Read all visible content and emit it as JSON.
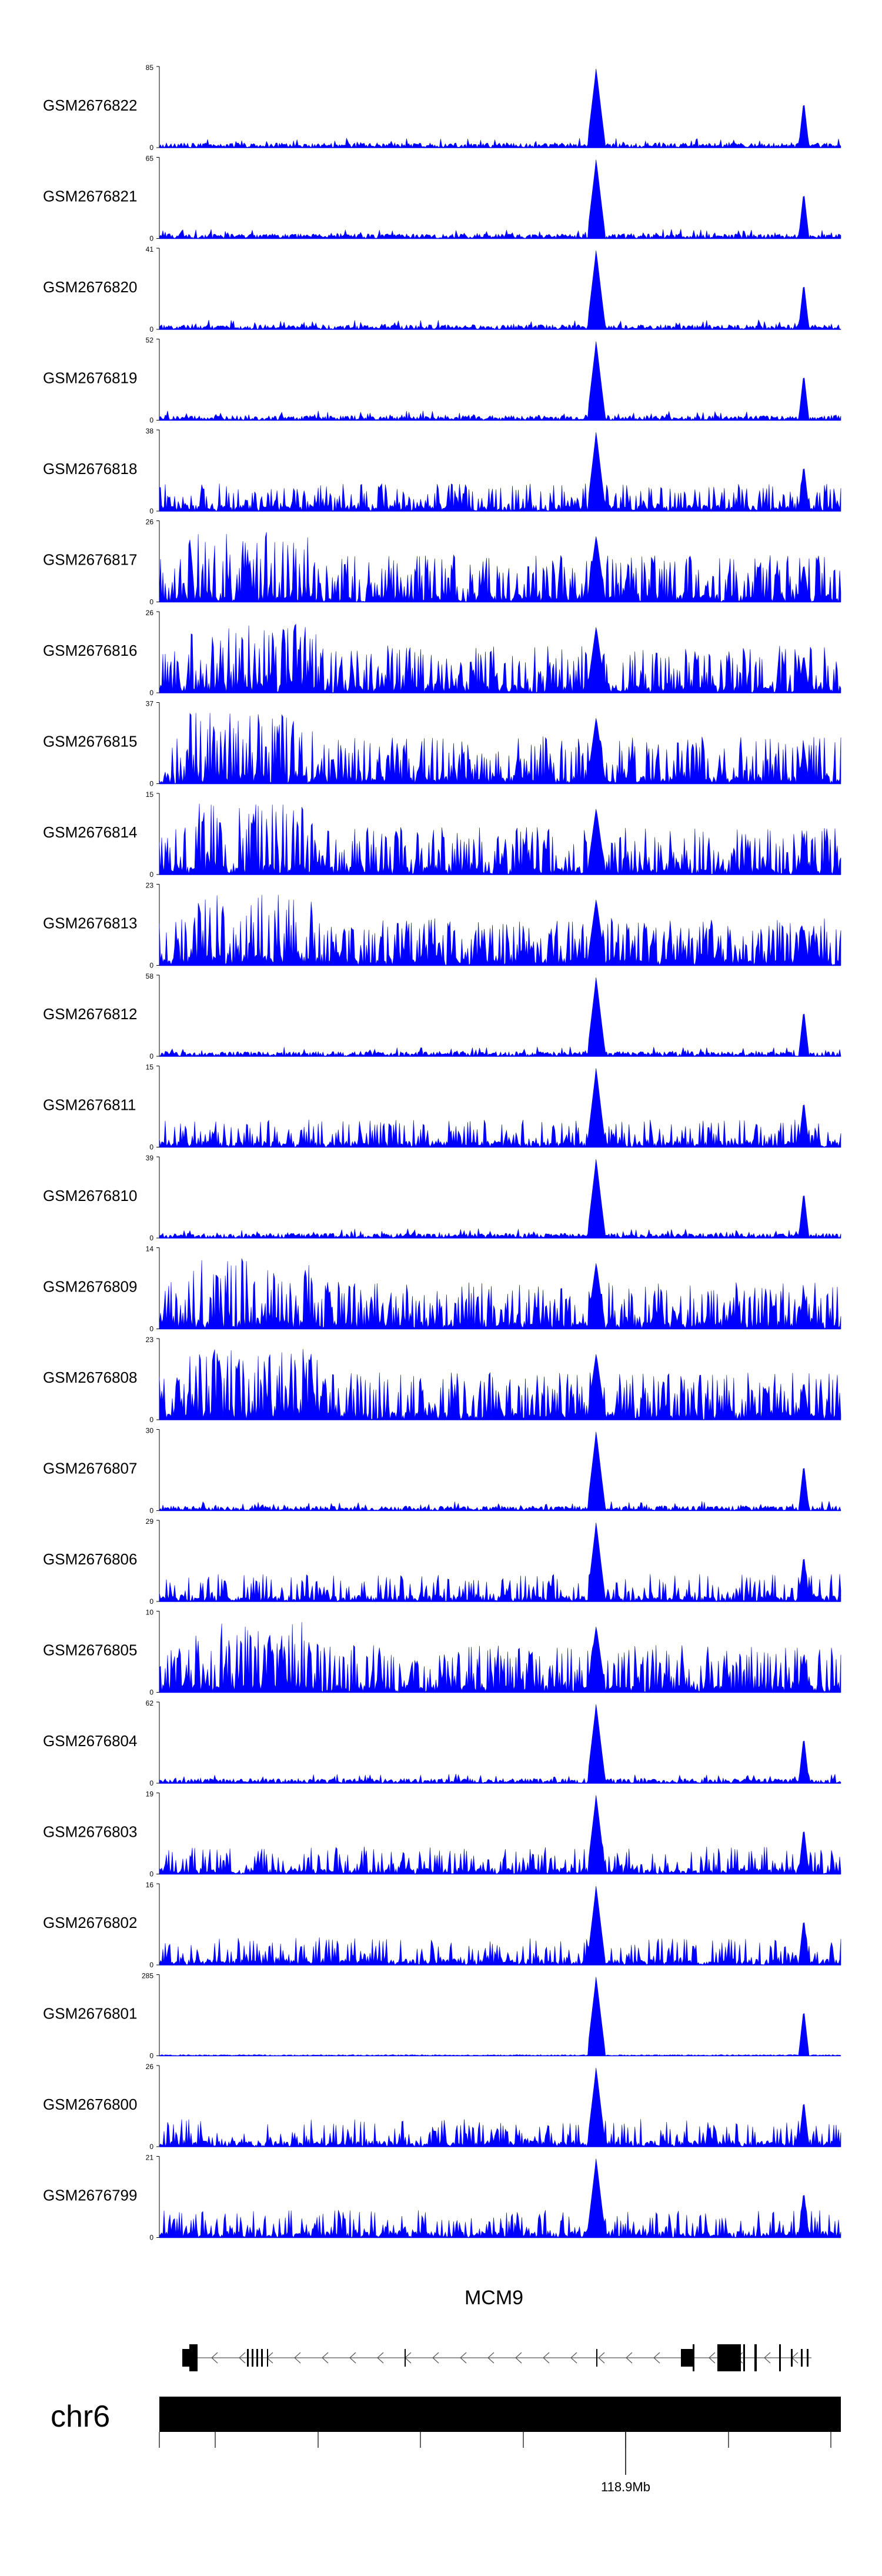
{
  "chart_data": {
    "type": "area",
    "description_kind": "genome coverage tracks",
    "series_color": "#0000ff",
    "tracks": [
      {
        "name": "GSM2676822",
        "ymax": "85",
        "ymin": "0",
        "profile": "sparse",
        "seed": 22
      },
      {
        "name": "GSM2676821",
        "ymax": "65",
        "ymin": "0",
        "profile": "sparse",
        "seed": 21
      },
      {
        "name": "GSM2676820",
        "ymax": "41",
        "ymin": "0",
        "profile": "sparse",
        "seed": 20
      },
      {
        "name": "GSM2676819",
        "ymax": "52",
        "ymin": "0",
        "profile": "sparse",
        "seed": 19
      },
      {
        "name": "GSM2676818",
        "ymax": "38",
        "ymin": "0",
        "profile": "medium",
        "seed": 18
      },
      {
        "name": "GSM2676817",
        "ymax": "26",
        "ymin": "0",
        "profile": "dense",
        "seed": 17
      },
      {
        "name": "GSM2676816",
        "ymax": "26",
        "ymin": "0",
        "profile": "dense",
        "seed": 16
      },
      {
        "name": "GSM2676815",
        "ymax": "37",
        "ymin": "0",
        "profile": "dense",
        "seed": 15
      },
      {
        "name": "GSM2676814",
        "ymax": "15",
        "ymin": "0",
        "profile": "dense",
        "seed": 14
      },
      {
        "name": "GSM2676813",
        "ymax": "23",
        "ymin": "0",
        "profile": "dense",
        "seed": 13
      },
      {
        "name": "GSM2676812",
        "ymax": "58",
        "ymin": "0",
        "profile": "sparse",
        "seed": 12
      },
      {
        "name": "GSM2676811",
        "ymax": "15",
        "ymin": "0",
        "profile": "medium",
        "seed": 11
      },
      {
        "name": "GSM2676810",
        "ymax": "39",
        "ymin": "0",
        "profile": "sparse",
        "seed": 10
      },
      {
        "name": "GSM2676809",
        "ymax": "14",
        "ymin": "0",
        "profile": "dense",
        "seed": 9
      },
      {
        "name": "GSM2676808",
        "ymax": "23",
        "ymin": "0",
        "profile": "dense",
        "seed": 8
      },
      {
        "name": "GSM2676807",
        "ymax": "30",
        "ymin": "0",
        "profile": "sparse",
        "seed": 7
      },
      {
        "name": "GSM2676806",
        "ymax": "29",
        "ymin": "0",
        "profile": "medium",
        "seed": 6
      },
      {
        "name": "GSM2676805",
        "ymax": "10",
        "ymin": "0",
        "profile": "dense",
        "seed": 5
      },
      {
        "name": "GSM2676804",
        "ymax": "62",
        "ymin": "0",
        "profile": "sparse",
        "seed": 4
      },
      {
        "name": "GSM2676803",
        "ymax": "19",
        "ymin": "0",
        "profile": "medium",
        "seed": 3
      },
      {
        "name": "GSM2676802",
        "ymax": "16",
        "ymin": "0",
        "profile": "medium",
        "seed": 2
      },
      {
        "name": "GSM2676801",
        "ymax": "285",
        "ymin": "0",
        "profile": "peaks",
        "seed": 1
      },
      {
        "name": "GSM2676800",
        "ymax": "26",
        "ymin": "0",
        "profile": "medium",
        "seed": 100
      },
      {
        "name": "GSM2676799",
        "ymax": "21",
        "ymin": "0",
        "profile": "medium",
        "seed": 99
      }
    ],
    "gene": {
      "name": "MCM9",
      "strand": "-"
    },
    "chromosome": {
      "name": "chr6",
      "position_label": "118.9Mb"
    }
  }
}
